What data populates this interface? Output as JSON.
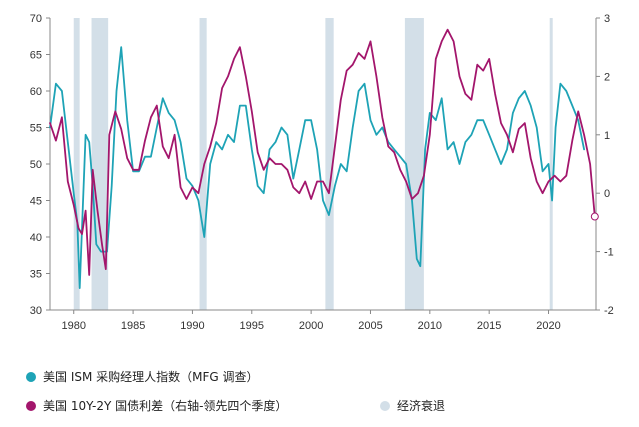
{
  "chart_data": {
    "type": "line",
    "title": "",
    "xlabel": "",
    "x_range": [
      1978,
      2024
    ],
    "x_ticks": [
      1980,
      1985,
      1990,
      1995,
      2000,
      2005,
      2010,
      2015,
      2020
    ],
    "y_left": {
      "range": [
        30,
        70
      ],
      "ticks": [
        30,
        35,
        40,
        45,
        50,
        55,
        60,
        65,
        70
      ]
    },
    "y_right": {
      "range": [
        -2,
        3
      ],
      "ticks": [
        -2,
        -1,
        0,
        1,
        2,
        3
      ]
    },
    "recessions": [
      [
        1980.0,
        1980.5
      ],
      [
        1981.5,
        1982.9
      ],
      [
        1990.6,
        1991.2
      ],
      [
        2001.2,
        2001.9
      ],
      [
        2007.9,
        2009.5
      ],
      [
        2020.1,
        2020.35
      ]
    ],
    "series": [
      {
        "name": "美国 ISM 采购经理人指数（MFG 调查）",
        "axis": "left",
        "color": "#1ea3b6",
        "x": [
          1978.0,
          1978.5,
          1979.0,
          1979.5,
          1980.0,
          1980.3,
          1980.5,
          1981.0,
          1981.3,
          1981.6,
          1981.9,
          1982.3,
          1982.8,
          1983.2,
          1983.6,
          1984.0,
          1984.5,
          1985.0,
          1985.5,
          1986.0,
          1986.5,
          1987.0,
          1987.5,
          1988.0,
          1988.5,
          1989.0,
          1989.5,
          1990.0,
          1990.5,
          1991.0,
          1991.5,
          1992.0,
          1992.5,
          1993.0,
          1993.5,
          1994.0,
          1994.5,
          1995.0,
          1995.5,
          1996.0,
          1996.5,
          1997.0,
          1997.5,
          1998.0,
          1998.5,
          1999.0,
          1999.5,
          2000.0,
          2000.5,
          2001.0,
          2001.5,
          2002.0,
          2002.5,
          2003.0,
          2003.5,
          2004.0,
          2004.5,
          2005.0,
          2005.5,
          2006.0,
          2006.5,
          2007.0,
          2007.5,
          2008.0,
          2008.5,
          2008.9,
          2009.2,
          2009.6,
          2010.0,
          2010.5,
          2011.0,
          2011.5,
          2012.0,
          2012.5,
          2013.0,
          2013.5,
          2014.0,
          2014.5,
          2015.0,
          2015.5,
          2016.0,
          2016.5,
          2017.0,
          2017.5,
          2018.0,
          2018.5,
          2019.0,
          2019.5,
          2020.0,
          2020.3,
          2020.6,
          2021.0,
          2021.5,
          2022.0,
          2022.5,
          2023.0
        ],
        "values": [
          55,
          61,
          60,
          53,
          46,
          42,
          33,
          54,
          53,
          47,
          39,
          38,
          38,
          47,
          60,
          66,
          56,
          49,
          49,
          51,
          51,
          55,
          59,
          57,
          56,
          53,
          48,
          47,
          45,
          40,
          50,
          53,
          52,
          54,
          53,
          58,
          58,
          52,
          47,
          46,
          52,
          53,
          55,
          54,
          48,
          52,
          56,
          56,
          52,
          45,
          43,
          47,
          50,
          49,
          55,
          60,
          61,
          56,
          54,
          55,
          53,
          52,
          51,
          50,
          45,
          37,
          36,
          52,
          57,
          56,
          59,
          52,
          53,
          50,
          53,
          54,
          56,
          56,
          54,
          52,
          50,
          52,
          57,
          59,
          60,
          58,
          55,
          49,
          50,
          45,
          55,
          61,
          60,
          58,
          56,
          52
        ]
      },
      {
        "name": "美国 10Y-2Y 国债利差（右轴-领先四个季度）",
        "axis": "right",
        "color": "#a3166c",
        "x": [
          1978.0,
          1978.5,
          1979.0,
          1979.5,
          1980.0,
          1980.4,
          1980.7,
          1981.0,
          1981.3,
          1981.6,
          1982.0,
          1982.4,
          1982.7,
          1983.0,
          1983.5,
          1984.0,
          1984.5,
          1985.0,
          1985.5,
          1986.0,
          1986.5,
          1987.0,
          1987.5,
          1988.0,
          1988.5,
          1989.0,
          1989.5,
          1990.0,
          1990.5,
          1991.0,
          1991.5,
          1992.0,
          1992.5,
          1993.0,
          1993.5,
          1994.0,
          1994.5,
          1995.0,
          1995.5,
          1996.0,
          1996.5,
          1997.0,
          1997.5,
          1998.0,
          1998.5,
          1999.0,
          1999.5,
          2000.0,
          2000.5,
          2001.0,
          2001.5,
          2002.0,
          2002.5,
          2003.0,
          2003.5,
          2004.0,
          2004.5,
          2005.0,
          2005.5,
          2006.0,
          2006.5,
          2007.0,
          2007.5,
          2008.0,
          2008.5,
          2009.0,
          2009.5,
          2010.0,
          2010.5,
          2011.0,
          2011.5,
          2012.0,
          2012.5,
          2013.0,
          2013.5,
          2014.0,
          2014.5,
          2015.0,
          2015.5,
          2016.0,
          2016.5,
          2017.0,
          2017.5,
          2018.0,
          2018.5,
          2019.0,
          2019.5,
          2020.0,
          2020.5,
          2021.0,
          2021.5,
          2022.0,
          2022.5,
          2023.0,
          2023.5,
          2023.9
        ],
        "values": [
          1.2,
          0.9,
          1.3,
          0.2,
          -0.2,
          -0.6,
          -0.7,
          -0.3,
          -1.4,
          0.4,
          -0.3,
          -0.9,
          -1.3,
          1.0,
          1.4,
          1.1,
          0.6,
          0.4,
          0.4,
          0.9,
          1.3,
          1.5,
          0.8,
          0.6,
          1.0,
          0.1,
          -0.1,
          0.1,
          0.0,
          0.5,
          0.8,
          1.2,
          1.8,
          2.0,
          2.3,
          2.5,
          2.0,
          1.4,
          0.7,
          0.4,
          0.6,
          0.5,
          0.5,
          0.4,
          0.1,
          0.0,
          0.2,
          -0.1,
          0.2,
          0.2,
          0.0,
          0.8,
          1.6,
          2.1,
          2.2,
          2.4,
          2.3,
          2.6,
          2.0,
          1.3,
          0.8,
          0.7,
          0.4,
          0.2,
          -0.1,
          0.0,
          0.3,
          1.0,
          2.3,
          2.6,
          2.8,
          2.6,
          2.0,
          1.7,
          1.6,
          2.2,
          2.1,
          2.3,
          1.7,
          1.2,
          1.0,
          0.7,
          1.1,
          1.2,
          0.6,
          0.2,
          0.0,
          0.2,
          0.3,
          0.2,
          0.3,
          0.9,
          1.4,
          1.0,
          0.5,
          -0.4
        ]
      }
    ]
  },
  "legend": {
    "items": [
      {
        "label": "美国 ISM 采购经理人指数（MFG 调查）",
        "color": "#1ea3b6"
      },
      {
        "label": "美国 10Y-2Y 国债利差（右轴-领先四个季度）",
        "color": "#a3166c"
      },
      {
        "label": "经济衰退",
        "color": "#d3dfe8"
      }
    ]
  }
}
